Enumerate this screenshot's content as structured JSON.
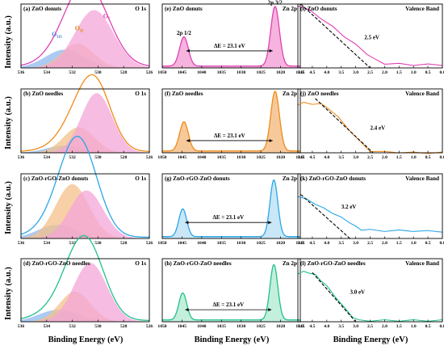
{
  "figure": {
    "x_axis_label": "Binding Energy (eV)",
    "y_axis_label": "Intensity (a.u.)"
  },
  "chart_data": [
    {
      "id": "a",
      "type": "area",
      "panel_label": "(a) ZnO donuts",
      "core_level": "O 1s",
      "color": "#e040b4",
      "xlim": [
        536,
        526
      ],
      "xticks": [
        536,
        534,
        532,
        530,
        528,
        526
      ],
      "x_reversed": true,
      "ylim": [
        0,
        1.05
      ],
      "peak_labels": [
        {
          "text": "O",
          "sub": "III",
          "x": 533.6,
          "y": 0.52,
          "color": "#5a8fe0"
        },
        {
          "text": "O",
          "sub": "II",
          "x": 531.8,
          "y": 0.62,
          "color": "#e08a10"
        },
        {
          "text": "O",
          "sub": "I",
          "x": 529.6,
          "y": 0.82,
          "color": "#e040b4"
        }
      ],
      "components": [
        {
          "label": "O_III",
          "center": 532.6,
          "height": 0.3,
          "width": 1.5,
          "color": "#8fb8f0"
        },
        {
          "label": "O_II",
          "center": 531.6,
          "height": 0.4,
          "width": 1.25,
          "color": "#f4c08a"
        },
        {
          "label": "O_I",
          "center": 530.3,
          "height": 0.95,
          "width": 1.5,
          "color": "#f3a6d8"
        }
      ]
    },
    {
      "id": "b",
      "type": "area",
      "panel_label": "(b) ZnO needles",
      "core_level": "O 1s",
      "color": "#f08a18",
      "xlim": [
        536,
        526
      ],
      "xticks": [
        536,
        534,
        532,
        530,
        528,
        526
      ],
      "x_reversed": true,
      "ylim": [
        0,
        1.05
      ],
      "components": [
        {
          "label": "O_III",
          "center": 532.6,
          "height": 0.12,
          "width": 1.4,
          "color": "#8fb8f0"
        },
        {
          "label": "O_II",
          "center": 531.5,
          "height": 0.42,
          "width": 1.2,
          "color": "#f4c08a"
        },
        {
          "label": "O_I",
          "center": 530.1,
          "height": 0.98,
          "width": 1.2,
          "color": "#f3a6d8"
        }
      ]
    },
    {
      "id": "c",
      "type": "area",
      "panel_label": "(c) ZnO-rGO-ZnO donuts",
      "core_level": "O 1s",
      "color": "#2aa6e6",
      "xlim": [
        536,
        526
      ],
      "xticks": [
        536,
        534,
        532,
        530,
        528,
        526
      ],
      "x_reversed": true,
      "ylim": [
        0,
        1.05
      ],
      "components": [
        {
          "label": "O_III",
          "center": 533.2,
          "height": 0.22,
          "width": 1.5,
          "color": "#8fb8f0"
        },
        {
          "label": "O_II",
          "center": 532.0,
          "height": 0.88,
          "width": 1.3,
          "color": "#f4c08a"
        },
        {
          "label": "O_I",
          "center": 530.9,
          "height": 0.78,
          "width": 1.3,
          "color": "#f3a6d8"
        }
      ]
    },
    {
      "id": "d",
      "type": "area",
      "panel_label": "(d) ZnO-rGO-ZnO needles",
      "core_level": "O 1s",
      "color": "#20c08a",
      "xlim": [
        536,
        526
      ],
      "xticks": [
        536,
        534,
        532,
        530,
        528,
        526
      ],
      "x_reversed": true,
      "ylim": [
        0,
        1.05
      ],
      "components": [
        {
          "label": "O_III",
          "center": 533.1,
          "height": 0.2,
          "width": 1.5,
          "color": "#8fb8f0"
        },
        {
          "label": "O_II",
          "center": 531.8,
          "height": 0.5,
          "width": 1.2,
          "color": "#f4c08a"
        },
        {
          "label": "O_I",
          "center": 530.6,
          "height": 0.98,
          "width": 1.3,
          "color": "#f3a6d8"
        }
      ]
    },
    {
      "id": "e",
      "type": "area",
      "panel_label": "(e) ZnO donuts",
      "core_level": "Zn 2p",
      "color": "#e040b4",
      "fill": "#f3a6d8",
      "xlim": [
        1050,
        1015
      ],
      "xticks": [
        1050,
        1045,
        1040,
        1035,
        1030,
        1025,
        1020,
        1015
      ],
      "x_reversed": true,
      "ylim": [
        0,
        1.05
      ],
      "peaks": [
        {
          "label": "2p 1/2",
          "center": 1044.5,
          "height": 0.48,
          "width": 1.1
        },
        {
          "label": "2p 3/2",
          "center": 1021.4,
          "height": 0.98,
          "width": 1.1
        }
      ],
      "splitting": {
        "text": "ΔE = 23.1 eV",
        "from": 1044.5,
        "to": 1021.4,
        "y": 0.28
      }
    },
    {
      "id": "f",
      "type": "area",
      "panel_label": "(f) ZnO needles",
      "core_level": "Zn 2p",
      "color": "#f08a18",
      "fill": "#f4c08a",
      "xlim": [
        1050,
        1015
      ],
      "xticks": [
        1050,
        1045,
        1040,
        1035,
        1030,
        1025,
        1020,
        1015
      ],
      "x_reversed": true,
      "ylim": [
        0,
        1.05
      ],
      "peaks": [
        {
          "center": 1044.5,
          "height": 0.48,
          "width": 1.1
        },
        {
          "center": 1021.4,
          "height": 0.98,
          "width": 1.1
        }
      ],
      "splitting": {
        "text": "ΔE = 23.1 eV",
        "from": 1044.5,
        "to": 1021.4,
        "y": 0.2
      }
    },
    {
      "id": "g",
      "type": "area",
      "panel_label": "(g) ZnO-rGO-ZnO donuts",
      "core_level": "Zn 2p",
      "color": "#2aa6e6",
      "fill": "#bfe3f6",
      "xlim": [
        1050,
        1015
      ],
      "xticks": [
        1050,
        1045,
        1040,
        1035,
        1030,
        1025,
        1020,
        1015
      ],
      "x_reversed": true,
      "ylim": [
        0,
        1.05
      ],
      "peaks": [
        {
          "center": 1044.8,
          "height": 0.45,
          "width": 1.0
        },
        {
          "center": 1021.7,
          "height": 0.92,
          "width": 1.0
        }
      ],
      "splitting": {
        "text": "ΔE = 23.1 eV",
        "from": 1044.8,
        "to": 1021.7,
        "y": 0.26
      }
    },
    {
      "id": "h",
      "type": "area",
      "panel_label": "(h) ZnO-rGO-ZnO needles",
      "core_level": "Zn 2p",
      "color": "#20c08a",
      "fill": "#b8ecd6",
      "xlim": [
        1050,
        1015
      ],
      "xticks": [
        1050,
        1045,
        1040,
        1035,
        1030,
        1025,
        1020,
        1015
      ],
      "x_reversed": true,
      "ylim": [
        0,
        1.05
      ],
      "peaks": [
        {
          "center": 1044.8,
          "height": 0.45,
          "width": 1.0
        },
        {
          "center": 1021.7,
          "height": 0.92,
          "width": 1.0
        }
      ],
      "splitting": {
        "text": "ΔE = 23.1 eV",
        "from": 1044.8,
        "to": 1021.7,
        "y": 0.2
      }
    },
    {
      "id": "i",
      "type": "line",
      "panel_label": "(i) ZnO donuts",
      "core_level": "Valence Band",
      "color": "#e040b4",
      "xlim": [
        5.0,
        0.0
      ],
      "xticks": [
        5.0,
        4.5,
        4.0,
        3.5,
        3.0,
        2.5,
        2.0,
        1.5,
        1.0,
        0.5,
        0.0
      ],
      "x_reversed": true,
      "ylim": [
        0,
        1.0
      ],
      "curve": [
        [
          5.0,
          0.98
        ],
        [
          4.6,
          0.9
        ],
        [
          4.2,
          0.78
        ],
        [
          3.8,
          0.64
        ],
        [
          3.4,
          0.5
        ],
        [
          3.0,
          0.36
        ],
        [
          2.6,
          0.22
        ],
        [
          2.3,
          0.12
        ],
        [
          2.0,
          0.07
        ],
        [
          1.5,
          0.06
        ],
        [
          1.0,
          0.05
        ],
        [
          0.5,
          0.05
        ],
        [
          0.0,
          0.05
        ]
      ],
      "fit": [
        [
          4.9,
          1.0
        ],
        [
          2.5,
          0.0
        ]
      ],
      "annotation": {
        "text": "2.5 eV",
        "x": 2.7,
        "y": 0.45
      }
    },
    {
      "id": "j",
      "type": "line",
      "panel_label": "(j) ZnO needles",
      "core_level": "Valence Band",
      "color": "#f08a18",
      "xlim": [
        5.0,
        0.0
      ],
      "xticks": [
        5.0,
        4.5,
        4.0,
        3.5,
        3.0,
        2.5,
        2.0,
        1.5,
        1.0,
        0.5,
        0.0
      ],
      "x_reversed": true,
      "ylim": [
        0,
        1.0
      ],
      "curve": [
        [
          5.0,
          0.76
        ],
        [
          4.8,
          0.78
        ],
        [
          4.5,
          0.77
        ],
        [
          4.2,
          0.76
        ],
        [
          4.0,
          0.72
        ],
        [
          3.6,
          0.55
        ],
        [
          3.2,
          0.35
        ],
        [
          2.8,
          0.15
        ],
        [
          2.5,
          0.03
        ],
        [
          2.0,
          0.01
        ],
        [
          1.5,
          0.01
        ],
        [
          1.0,
          0.0
        ],
        [
          0.5,
          0.0
        ],
        [
          0.0,
          0.0
        ]
      ],
      "fit": [
        [
          4.4,
          0.85
        ],
        [
          2.4,
          0.0
        ]
      ],
      "annotation": {
        "text": "2.4 eV",
        "x": 2.5,
        "y": 0.36
      }
    },
    {
      "id": "k",
      "type": "line",
      "panel_label": "(k) ZnO-rGO-ZnO donuts",
      "core_level": "Valence Band",
      "color": "#2aa6e6",
      "xlim": [
        5.0,
        0.0
      ],
      "xticks": [
        5.0,
        4.5,
        4.0,
        3.5,
        3.0,
        2.5,
        2.0,
        1.5,
        1.0,
        0.5,
        0.0
      ],
      "x_reversed": true,
      "ylim": [
        0,
        1.0
      ],
      "curve": [
        [
          5.0,
          0.66
        ],
        [
          4.7,
          0.6
        ],
        [
          4.4,
          0.54
        ],
        [
          4.1,
          0.46
        ],
        [
          3.8,
          0.4
        ],
        [
          3.5,
          0.32
        ],
        [
          3.2,
          0.25
        ],
        [
          3.0,
          0.18
        ],
        [
          2.8,
          0.14
        ],
        [
          2.5,
          0.13
        ],
        [
          2.0,
          0.12
        ],
        [
          1.5,
          0.12
        ],
        [
          1.0,
          0.12
        ],
        [
          0.5,
          0.11
        ],
        [
          0.0,
          0.11
        ]
      ],
      "fit": [
        [
          4.9,
          0.68
        ],
        [
          3.2,
          0.0
        ]
      ],
      "annotation": {
        "text": "3.2 eV",
        "x": 3.5,
        "y": 0.46
      }
    },
    {
      "id": "l",
      "type": "line",
      "panel_label": "(l) ZnO-rGO-ZnO needles",
      "core_level": "Valence Band",
      "color": "#20c08a",
      "xlim": [
        5.0,
        0.0
      ],
      "xticks": [
        5.0,
        4.5,
        4.0,
        3.5,
        3.0,
        2.5,
        2.0,
        1.5,
        1.0,
        0.5,
        0.0
      ],
      "x_reversed": true,
      "ylim": [
        0,
        1.0
      ],
      "curve": [
        [
          5.0,
          0.77
        ],
        [
          4.8,
          0.79
        ],
        [
          4.6,
          0.78
        ],
        [
          4.4,
          0.74
        ],
        [
          4.2,
          0.66
        ],
        [
          4.0,
          0.56
        ],
        [
          3.7,
          0.4
        ],
        [
          3.4,
          0.22
        ],
        [
          3.1,
          0.08
        ],
        [
          2.9,
          0.02
        ],
        [
          2.5,
          0.02
        ],
        [
          2.0,
          0.02
        ],
        [
          1.5,
          0.02
        ],
        [
          1.0,
          0.02
        ],
        [
          0.5,
          0.02
        ],
        [
          0.0,
          0.02
        ]
      ],
      "fit": [
        [
          4.5,
          0.78
        ],
        [
          3.0,
          0.0
        ]
      ],
      "annotation": {
        "text": "3.0 eV",
        "x": 3.2,
        "y": 0.44
      }
    }
  ]
}
